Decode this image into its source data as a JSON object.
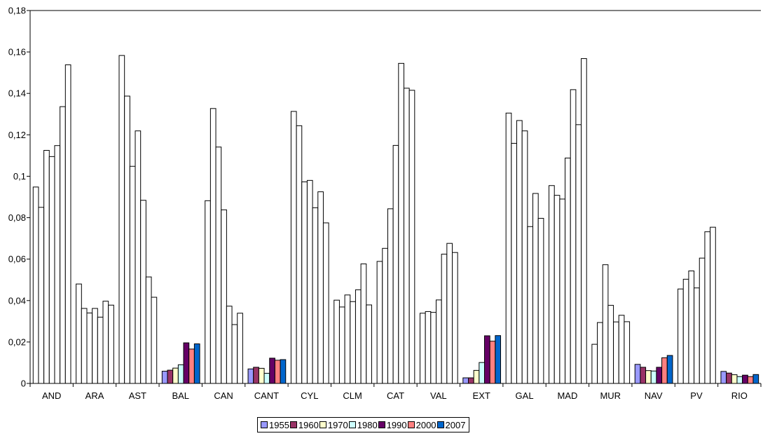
{
  "chart_data": {
    "type": "bar",
    "title": "",
    "xlabel": "",
    "ylabel": "",
    "ylim": [
      0,
      0.18
    ],
    "y_ticks": [
      "0",
      "0,02",
      "0,04",
      "0,06",
      "0,08",
      "0,1",
      "0,12",
      "0,14",
      "0,16",
      "0,18"
    ],
    "y_tick_values": [
      0,
      0.02,
      0.04,
      0.06,
      0.08,
      0.1,
      0.12,
      0.14,
      0.16,
      0.18
    ],
    "grid": false,
    "legend_position": "bottom",
    "categories": [
      "AND",
      "ARA",
      "AST",
      "BAL",
      "CAN",
      "CANT",
      "CYL",
      "CLM",
      "CAT",
      "VAL",
      "EXT",
      "GAL",
      "MAD",
      "MUR",
      "NAV",
      "PV",
      "RIO"
    ],
    "bars_per_category": 8,
    "values": [
      [
        0.0948,
        0.085,
        0.1125,
        0.1095,
        0.1148,
        0.1336,
        0.1538,
        null
      ],
      [
        0.048,
        0.0362,
        0.034,
        0.0362,
        0.032,
        0.0397,
        0.0378,
        null
      ],
      [
        0.1583,
        0.1387,
        0.1048,
        0.1219,
        0.0884,
        0.0514,
        0.0416,
        null
      ],
      [
        0.0059,
        0.0064,
        0.0074,
        0.009,
        0.0196,
        0.0166,
        0.0191,
        null
      ],
      [
        0.0882,
        0.1327,
        0.1141,
        0.0838,
        0.0373,
        0.0284,
        0.0339,
        null
      ],
      [
        0.007,
        0.0078,
        0.0073,
        0.0049,
        0.0122,
        0.0112,
        0.0115,
        null
      ],
      [
        0.1313,
        0.1244,
        0.0973,
        0.098,
        0.0848,
        0.0925,
        0.0775,
        null
      ],
      [
        0.0402,
        0.0369,
        0.0427,
        0.0395,
        0.0452,
        0.0577,
        0.0379,
        null
      ],
      [
        0.0589,
        0.0652,
        0.0843,
        0.1149,
        0.1545,
        0.1425,
        0.1415,
        null
      ],
      [
        0.0339,
        0.0347,
        0.0343,
        0.0403,
        0.0624,
        0.0676,
        0.0632,
        null
      ],
      [
        0.0027,
        0.0027,
        0.0063,
        0.0101,
        0.023,
        0.0204,
        0.0231,
        null
      ],
      [
        0.1305,
        0.1159,
        0.1269,
        0.1219,
        0.0757,
        0.0917,
        0.0797,
        null
      ],
      [
        0.0955,
        0.0908,
        0.089,
        0.1088,
        0.1418,
        0.1249,
        0.1568,
        null
      ],
      [
        0.0189,
        0.0294,
        0.0573,
        0.0377,
        0.0297,
        0.0329,
        0.0298,
        null
      ],
      [
        0.0092,
        0.0078,
        0.0062,
        0.006,
        0.0078,
        0.0124,
        0.0135,
        null
      ],
      [
        0.0456,
        0.0503,
        0.0543,
        0.0461,
        0.0605,
        0.0732,
        0.0754,
        null
      ],
      [
        0.0058,
        0.005,
        0.0042,
        0.0033,
        0.004,
        0.0033,
        0.0043,
        null
      ]
    ],
    "bar_fill": "#ffffff",
    "colored_categories": [
      "BAL",
      "CANT",
      "EXT",
      "NAV",
      "RIO"
    ],
    "series": [
      {
        "name": "1955",
        "color": "#9999ff"
      },
      {
        "name": "1960",
        "color": "#993366"
      },
      {
        "name": "1970",
        "color": "#ffffcc"
      },
      {
        "name": "1980",
        "color": "#ccffff"
      },
      {
        "name": "1990",
        "color": "#660066"
      },
      {
        "name": "2000",
        "color": "#ff8080"
      },
      {
        "name": "2007",
        "color": "#0066cc"
      }
    ]
  }
}
